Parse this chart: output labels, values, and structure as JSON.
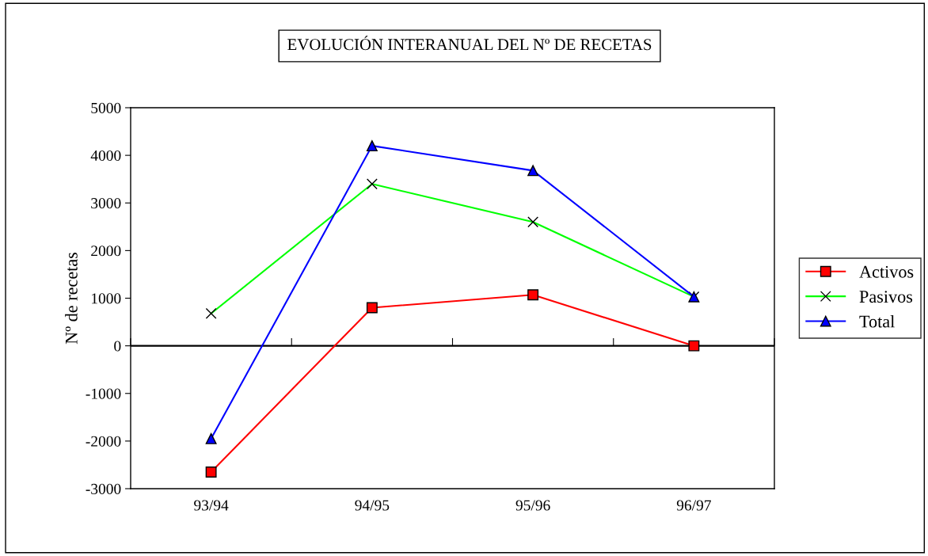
{
  "chart_data": {
    "type": "line",
    "title": "EVOLUCIÓN INTERANUAL DEL Nº DE RECETAS",
    "ylabel": "Nº de recetas",
    "categories": [
      "93/94",
      "94/95",
      "95/96",
      "96/97"
    ],
    "series": [
      {
        "name": "Activos",
        "color": "#ff0000",
        "marker": "square",
        "values": [
          -2650,
          800,
          1070,
          0
        ]
      },
      {
        "name": "Pasivos",
        "color": "#00ff00",
        "marker": "cross",
        "values": [
          680,
          3400,
          2600,
          1030
        ]
      },
      {
        "name": "Total",
        "color": "#0000ff",
        "marker": "triangle",
        "values": [
          -1950,
          4200,
          3680,
          1030
        ]
      }
    ],
    "ylim": [
      -3000,
      5000
    ],
    "yticks": [
      -3000,
      -2000,
      -1000,
      0,
      1000,
      2000,
      3000,
      4000,
      5000
    ],
    "ref_lines": [
      {
        "axis": "y",
        "value": 0,
        "color": "#000000"
      }
    ],
    "grid": false,
    "legend": "right"
  }
}
